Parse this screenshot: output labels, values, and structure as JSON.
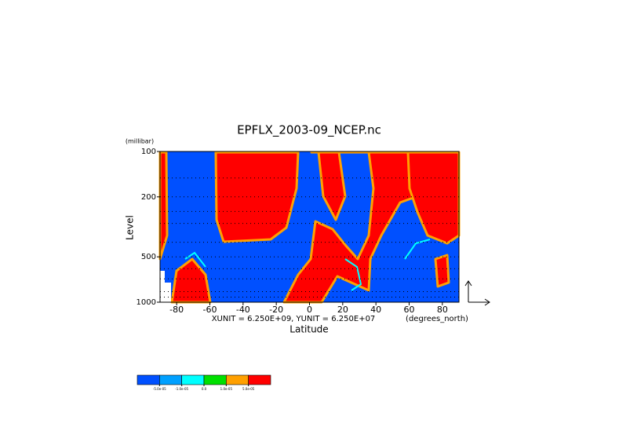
{
  "chart_data": {
    "type": "contour",
    "title": "EPFLX_2003-09_NCEP.nc",
    "y_unit": "(millibar)",
    "y_label": "Level",
    "x_label": "Latitude",
    "x_unit": "(degrees_north)",
    "vector_scale": "XUNIT = 6.250E+09, YUNIT = 6.250E+07",
    "xlim": [
      -90,
      90
    ],
    "xticks": [
      -80,
      -60,
      -40,
      -20,
      0,
      20,
      40,
      60,
      80
    ],
    "ylim": [
      1000,
      100
    ],
    "y_log": true,
    "yticks": [
      100,
      200,
      500,
      1000
    ],
    "levels": [
      100,
      150,
      200,
      250,
      300,
      400,
      500,
      600,
      700,
      850,
      925,
      1000
    ],
    "colorbar": {
      "colors": [
        "#0050ff",
        "#00a0ff",
        "#00ffff",
        "#00e000",
        "#ffa000",
        "#ff0000"
      ],
      "ticks": [
        {
          "value": -5e-05,
          "label": "-5.0e-05"
        },
        {
          "value": -1e-05,
          "label": "-1.0e-05"
        },
        {
          "value": 0,
          "label": "0.0"
        },
        {
          "value": 1e-05,
          "label": "1.0e-05"
        },
        {
          "value": 5e-05,
          "label": "5.0e-05"
        }
      ]
    }
  }
}
